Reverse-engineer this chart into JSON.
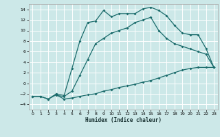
{
  "xlabel": "Humidex (Indice chaleur)",
  "background_color": "#cce8e8",
  "grid_color": "#ffffff",
  "line_color": "#1a6b6b",
  "xlim": [
    -0.5,
    23.5
  ],
  "ylim": [
    -5,
    15
  ],
  "yticks": [
    -4,
    -2,
    0,
    2,
    4,
    6,
    8,
    10,
    12,
    14
  ],
  "xticks": [
    0,
    1,
    2,
    3,
    4,
    5,
    6,
    7,
    8,
    9,
    10,
    11,
    12,
    13,
    14,
    15,
    16,
    17,
    18,
    19,
    20,
    21,
    22,
    23
  ],
  "line1_x": [
    0,
    1,
    2,
    3,
    4,
    5,
    6,
    7,
    8,
    9,
    10,
    11,
    12,
    13,
    14,
    15,
    16,
    17,
    18,
    19,
    20,
    21,
    22,
    23
  ],
  "line1_y": [
    -2.5,
    -2.5,
    -3.0,
    -2.0,
    -2.3,
    2.8,
    8.0,
    11.5,
    11.8,
    13.8,
    12.6,
    13.2,
    13.2,
    13.2,
    14.1,
    14.4,
    13.8,
    12.8,
    11.0,
    9.5,
    9.2,
    9.2,
    6.6,
    3.0
  ],
  "line2_x": [
    0,
    1,
    2,
    3,
    4,
    5,
    6,
    7,
    8,
    9,
    10,
    11,
    12,
    13,
    14,
    15,
    16,
    17,
    18,
    19,
    20,
    21,
    22,
    23
  ],
  "line2_y": [
    -2.5,
    -2.5,
    -3.0,
    -2.2,
    -3.0,
    -2.8,
    -2.5,
    -2.2,
    -2.0,
    -1.5,
    -1.2,
    -0.8,
    -0.5,
    -0.2,
    0.2,
    0.5,
    1.0,
    1.5,
    2.0,
    2.5,
    2.8,
    3.0,
    3.0,
    3.0
  ],
  "line3_x": [
    3,
    4,
    5,
    6,
    7,
    8,
    9,
    10,
    11,
    12,
    13,
    14,
    15,
    16,
    17,
    18,
    19,
    20,
    21,
    22,
    23
  ],
  "line3_y": [
    -2.3,
    -2.5,
    -1.5,
    1.5,
    4.5,
    7.5,
    8.5,
    9.5,
    10.0,
    10.5,
    11.5,
    12.0,
    12.5,
    10.0,
    8.5,
    7.5,
    7.0,
    6.5,
    6.0,
    5.5,
    3.0
  ]
}
